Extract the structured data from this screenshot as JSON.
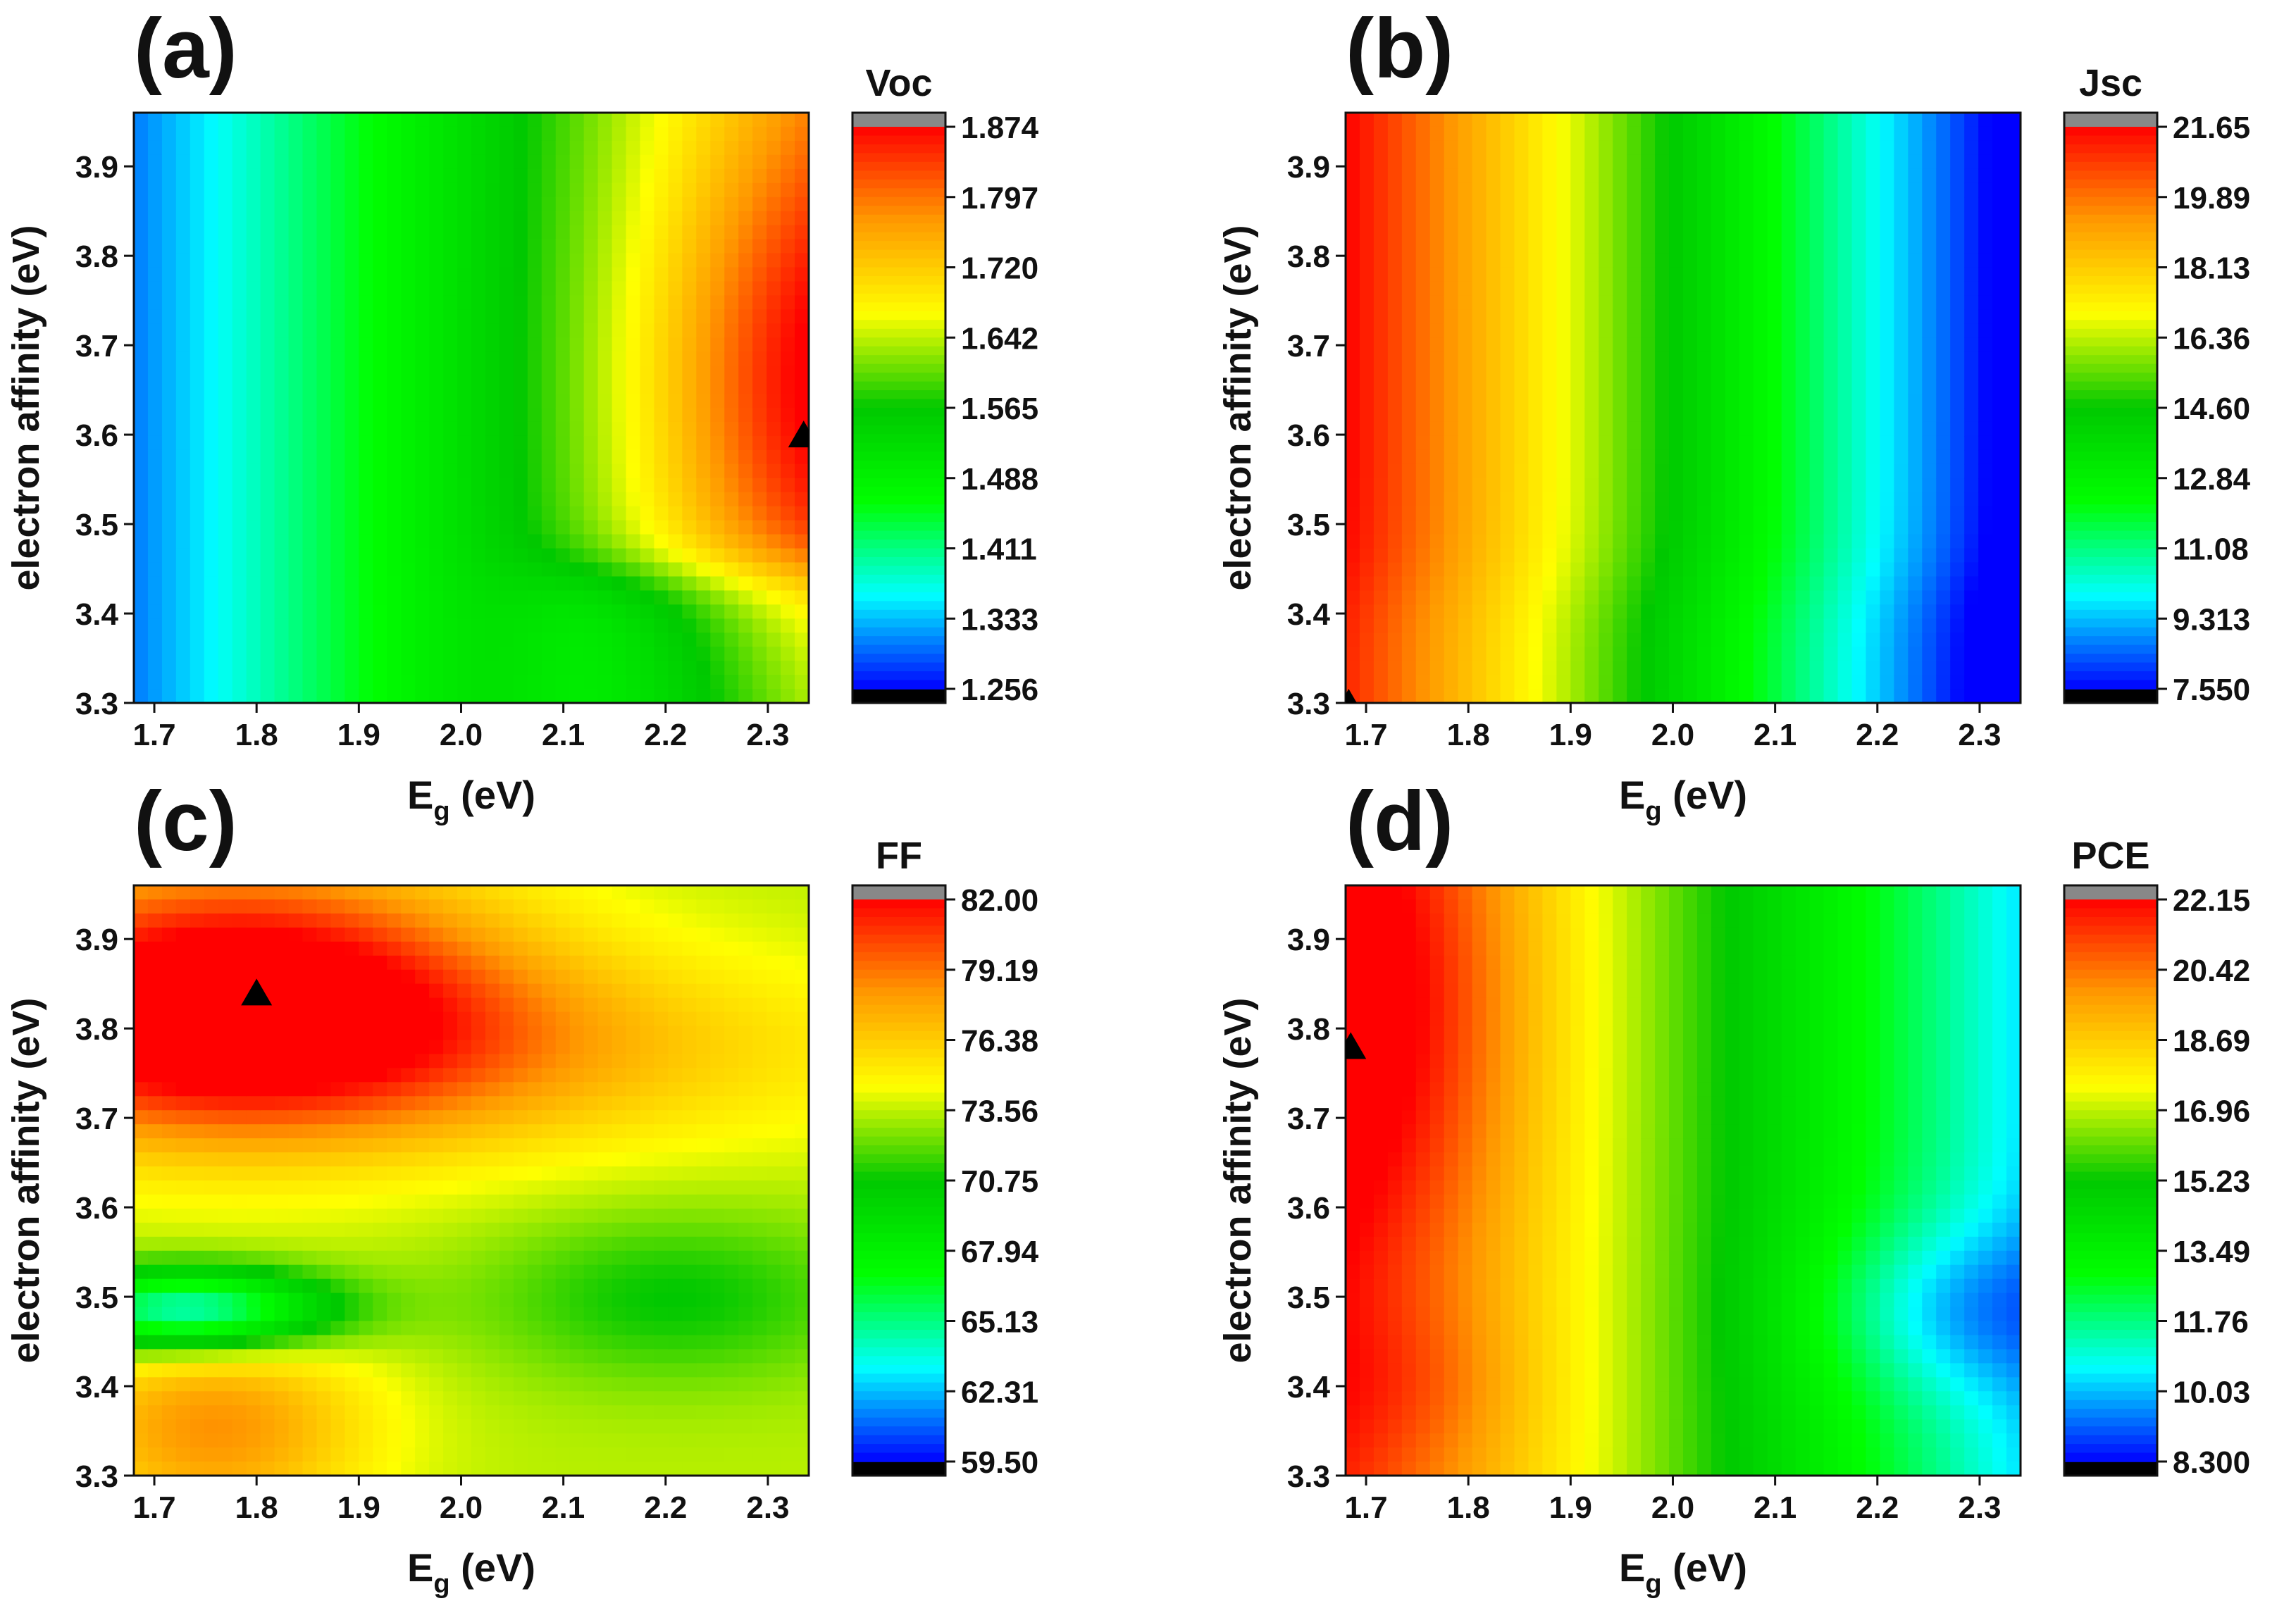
{
  "figure": {
    "colormap": [
      "#0000ff",
      "#00ffff",
      "#00ff00",
      "#00c800",
      "#ffff00",
      "#ff9900",
      "#ff0000"
    ],
    "overflow_high_color": "#888888",
    "overflow_low_color": "#000000",
    "marker_color": "#000000"
  },
  "chart_data": [
    {
      "type": "heatmap",
      "panel_label": "(a)",
      "colorbar_title": "Voc",
      "xlabel_main": "E",
      "xlabel_sub": "g",
      "xlabel_rest": " (eV)",
      "ylabel": "electron affinity (eV)",
      "xlim": [
        1.68,
        2.34
      ],
      "ylim": [
        3.3,
        3.96
      ],
      "xticks": [
        "1.7",
        "1.8",
        "1.9",
        "2.0",
        "2.1",
        "2.2",
        "2.3"
      ],
      "yticks": [
        "3.3",
        "3.4",
        "3.5",
        "3.6",
        "3.7",
        "3.8",
        "3.9"
      ],
      "colorbar_range": [
        1.256,
        1.874
      ],
      "colorbar_ticks": [
        "1.874",
        "1.797",
        "1.720",
        "1.642",
        "1.565",
        "1.488",
        "1.411",
        "1.333",
        "1.256"
      ],
      "marker": {
        "x": 2.335,
        "y": 3.6
      },
      "pattern": "voc"
    },
    {
      "type": "heatmap",
      "panel_label": "(b)",
      "colorbar_title": "Jsc",
      "xlabel_main": "E",
      "xlabel_sub": "g",
      "xlabel_rest": " (eV)",
      "ylabel": "electron affinity (eV)",
      "xlim": [
        1.68,
        2.34
      ],
      "ylim": [
        3.3,
        3.96
      ],
      "xticks": [
        "1.7",
        "1.8",
        "1.9",
        "2.0",
        "2.1",
        "2.2",
        "2.3"
      ],
      "yticks": [
        "3.3",
        "3.4",
        "3.5",
        "3.6",
        "3.7",
        "3.8",
        "3.9"
      ],
      "colorbar_range": [
        7.55,
        21.65
      ],
      "colorbar_ticks": [
        "21.65",
        "19.89",
        "18.13",
        "16.36",
        "14.60",
        "12.84",
        "11.08",
        "9.313",
        "7.550"
      ],
      "marker": {
        "x": 1.683,
        "y": 3.3
      },
      "pattern": "jsc"
    },
    {
      "type": "heatmap",
      "panel_label": "(c)",
      "colorbar_title": "FF",
      "xlabel_main": "E",
      "xlabel_sub": "g",
      "xlabel_rest": " (eV)",
      "ylabel": "electron affinity (eV)",
      "xlim": [
        1.68,
        2.34
      ],
      "ylim": [
        3.3,
        3.96
      ],
      "xticks": [
        "1.7",
        "1.8",
        "1.9",
        "2.0",
        "2.1",
        "2.2",
        "2.3"
      ],
      "yticks": [
        "3.3",
        "3.4",
        "3.5",
        "3.6",
        "3.7",
        "3.8",
        "3.9"
      ],
      "colorbar_range": [
        59.5,
        82.0
      ],
      "colorbar_ticks": [
        "82.00",
        "79.19",
        "76.38",
        "73.56",
        "70.75",
        "67.94",
        "65.13",
        "62.31",
        "59.50"
      ],
      "marker": {
        "x": 1.8,
        "y": 3.84
      },
      "pattern": "ff"
    },
    {
      "type": "heatmap",
      "panel_label": "(d)",
      "colorbar_title": "PCE",
      "xlabel_main": "E",
      "xlabel_sub": "g",
      "xlabel_rest": " (eV)",
      "ylabel": "electron affinity (eV)",
      "xlim": [
        1.68,
        2.34
      ],
      "ylim": [
        3.3,
        3.96
      ],
      "xticks": [
        "1.7",
        "1.8",
        "1.9",
        "2.0",
        "2.1",
        "2.2",
        "2.3"
      ],
      "yticks": [
        "3.3",
        "3.4",
        "3.5",
        "3.6",
        "3.7",
        "3.8",
        "3.9"
      ],
      "colorbar_range": [
        8.3,
        22.15
      ],
      "colorbar_ticks": [
        "22.15",
        "20.42",
        "18.69",
        "16.96",
        "15.23",
        "13.49",
        "11.76",
        "10.03",
        "8.300"
      ],
      "marker": {
        "x": 1.685,
        "y": 3.78
      },
      "pattern": "pce"
    }
  ]
}
